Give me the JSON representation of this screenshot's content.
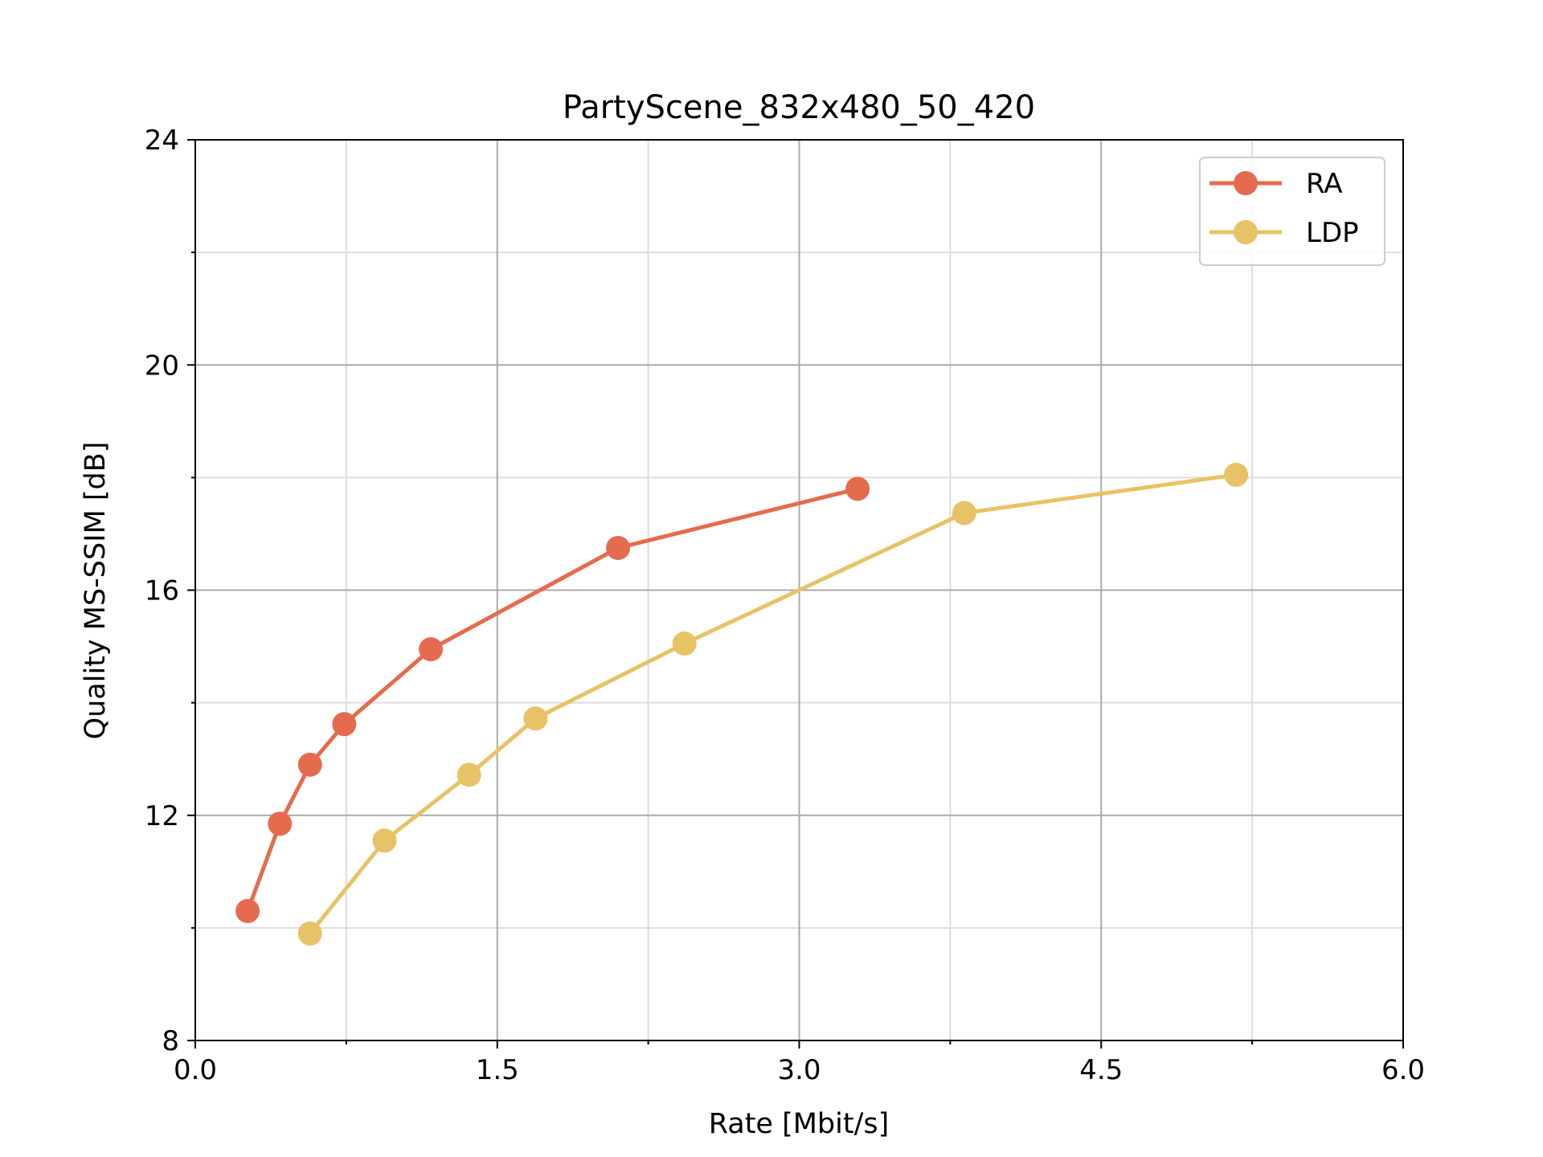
{
  "chart_data": {
    "type": "line",
    "title": "PartyScene_832x480_50_420",
    "xlabel": "Rate [Mbit/s]",
    "ylabel": "Quality MS-SSIM [dB]",
    "xlim": [
      0.0,
      6.0
    ],
    "ylim": [
      8,
      24
    ],
    "x_major_ticks": [
      0.0,
      1.5,
      3.0,
      4.5,
      6.0
    ],
    "x_major_tick_labels": [
      "0.0",
      "1.5",
      "3.0",
      "4.5",
      "6.0"
    ],
    "x_minor_ticks": [
      0.75,
      2.25,
      3.75,
      5.25
    ],
    "y_major_ticks": [
      8,
      12,
      16,
      20,
      24
    ],
    "y_major_tick_labels": [
      "8",
      "12",
      "16",
      "20",
      "24"
    ],
    "y_minor_ticks": [
      10,
      14,
      18,
      22
    ],
    "grid": true,
    "legend_position": "top-right",
    "series": [
      {
        "name": "RA",
        "color": "#e56b4e",
        "x": [
          0.26,
          0.42,
          0.57,
          0.74,
          1.17,
          2.1,
          3.29
        ],
        "y": [
          10.3,
          11.85,
          12.9,
          13.62,
          14.95,
          16.75,
          17.8
        ]
      },
      {
        "name": "LDP",
        "color": "#e8c266",
        "x": [
          0.57,
          0.94,
          1.36,
          1.69,
          2.43,
          3.82,
          5.17
        ],
        "y": [
          9.9,
          11.55,
          12.72,
          13.72,
          15.05,
          17.37,
          18.05
        ]
      }
    ]
  }
}
